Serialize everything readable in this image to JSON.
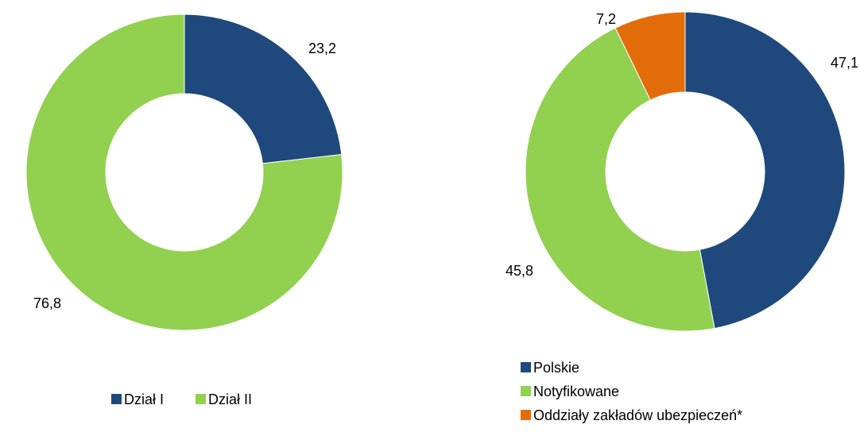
{
  "chart_data": [
    {
      "type": "donut",
      "categories": [
        "Dział I",
        "Dział II"
      ],
      "values": [
        23.2,
        76.8
      ],
      "value_labels": [
        "23,2",
        "76,8"
      ],
      "colors": [
        "#1f497d",
        "#92d050"
      ],
      "legend": "bottom"
    },
    {
      "type": "donut",
      "categories": [
        "Polskie",
        "Notyfikowane",
        "Oddziały zakładów ubezpieczeń*"
      ],
      "values": [
        47.1,
        45.8,
        7.2
      ],
      "value_labels": [
        "47,1",
        "45,8",
        "7,2"
      ],
      "colors": [
        "#1f497d",
        "#92d050",
        "#e36c0a"
      ],
      "legend": "bottom"
    }
  ]
}
